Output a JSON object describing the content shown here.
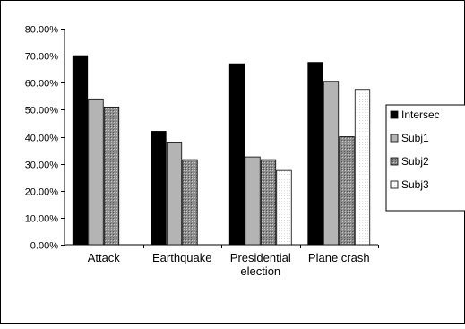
{
  "chart_data": {
    "type": "bar",
    "title": "",
    "xlabel": "",
    "ylabel": "",
    "ylim": [
      0,
      0.8
    ],
    "yticks": [
      0,
      0.1,
      0.2,
      0.3,
      0.4,
      0.5,
      0.6,
      0.7,
      0.8
    ],
    "ytick_labels": [
      "0.00%",
      "10.00%",
      "20.00%",
      "30.00%",
      "40.00%",
      "50.00%",
      "60.00%",
      "70.00%",
      "80.00%"
    ],
    "categories": [
      "Attack",
      "Earthquake",
      "Presidential election",
      "Plane crash"
    ],
    "category_lines": [
      [
        "Attack"
      ],
      [
        "Earthquake"
      ],
      [
        "Presidential",
        "election"
      ],
      [
        "Plane crash"
      ]
    ],
    "legend_position": "right",
    "grid": false,
    "series": [
      {
        "name": "Intersec",
        "fill": "#000000",
        "values": [
          0.7,
          0.42,
          0.67,
          0.675
        ]
      },
      {
        "name": "Subj1",
        "fill": "#b4b4b4",
        "values": [
          0.54,
          0.38,
          0.325,
          0.605
        ]
      },
      {
        "name": "Subj2",
        "fill": "#909090",
        "values": [
          0.51,
          0.315,
          0.315,
          0.4
        ]
      },
      {
        "name": "Subj3",
        "fill": "#f4f4f4",
        "values": [
          null,
          null,
          0.275,
          0.575
        ]
      }
    ]
  }
}
